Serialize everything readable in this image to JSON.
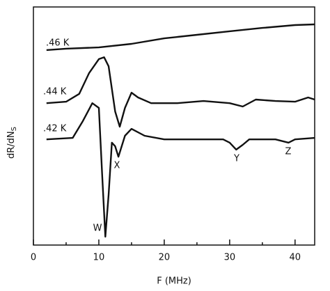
{
  "chart_data": {
    "type": "line",
    "xlabel": "F (MHz)",
    "ylabel": "dR/dN",
    "ylabel_sub": "S",
    "xlim": [
      0,
      43
    ],
    "ylim": [
      0,
      100
    ],
    "xticks": [
      0,
      10,
      20,
      30,
      40
    ],
    "xminorticks": [
      5,
      15,
      25,
      35
    ],
    "series": [
      {
        "name": ".46 K",
        "color": "#111111",
        "x": [
          2,
          5,
          10,
          15,
          20,
          25,
          30,
          35,
          40,
          43
        ],
        "values": [
          81.9,
          82.5,
          83,
          84.5,
          86.8,
          88.3,
          89.8,
          91.2,
          92.4,
          92.7
        ]
      },
      {
        "name": ".44 K",
        "color": "#111111",
        "x": [
          2,
          5,
          7,
          8.5,
          10,
          10.8,
          11.5,
          12.5,
          13.2,
          14,
          15,
          16,
          18,
          22,
          26,
          30,
          32,
          34,
          37,
          40,
          42,
          43
        ],
        "values": [
          59.6,
          60.2,
          63.5,
          72.2,
          78.1,
          78.9,
          75.1,
          56.1,
          49.7,
          57.6,
          64,
          62,
          59.6,
          59.6,
          60.5,
          59.6,
          58.2,
          61.1,
          60.5,
          60.2,
          62,
          61.1
        ]
      },
      {
        "name": ".42 K",
        "color": "#111111",
        "x": [
          2,
          6,
          7.5,
          9,
          10,
          10.5,
          11,
          11.5,
          12,
          12.5,
          13,
          14,
          15,
          17,
          20,
          25,
          29,
          30,
          31,
          32,
          33,
          37,
          39,
          40,
          43
        ],
        "values": [
          44.4,
          45,
          51.8,
          59.6,
          57.6,
          29.8,
          3.5,
          21.1,
          43,
          41.5,
          37.1,
          45.9,
          48.8,
          45.9,
          44.4,
          44.4,
          44.4,
          43,
          40.1,
          42.1,
          44.4,
          44.4,
          43,
          44.4,
          45
        ]
      }
    ],
    "annotations": [
      "W",
      "X",
      "Y",
      "Z"
    ]
  }
}
